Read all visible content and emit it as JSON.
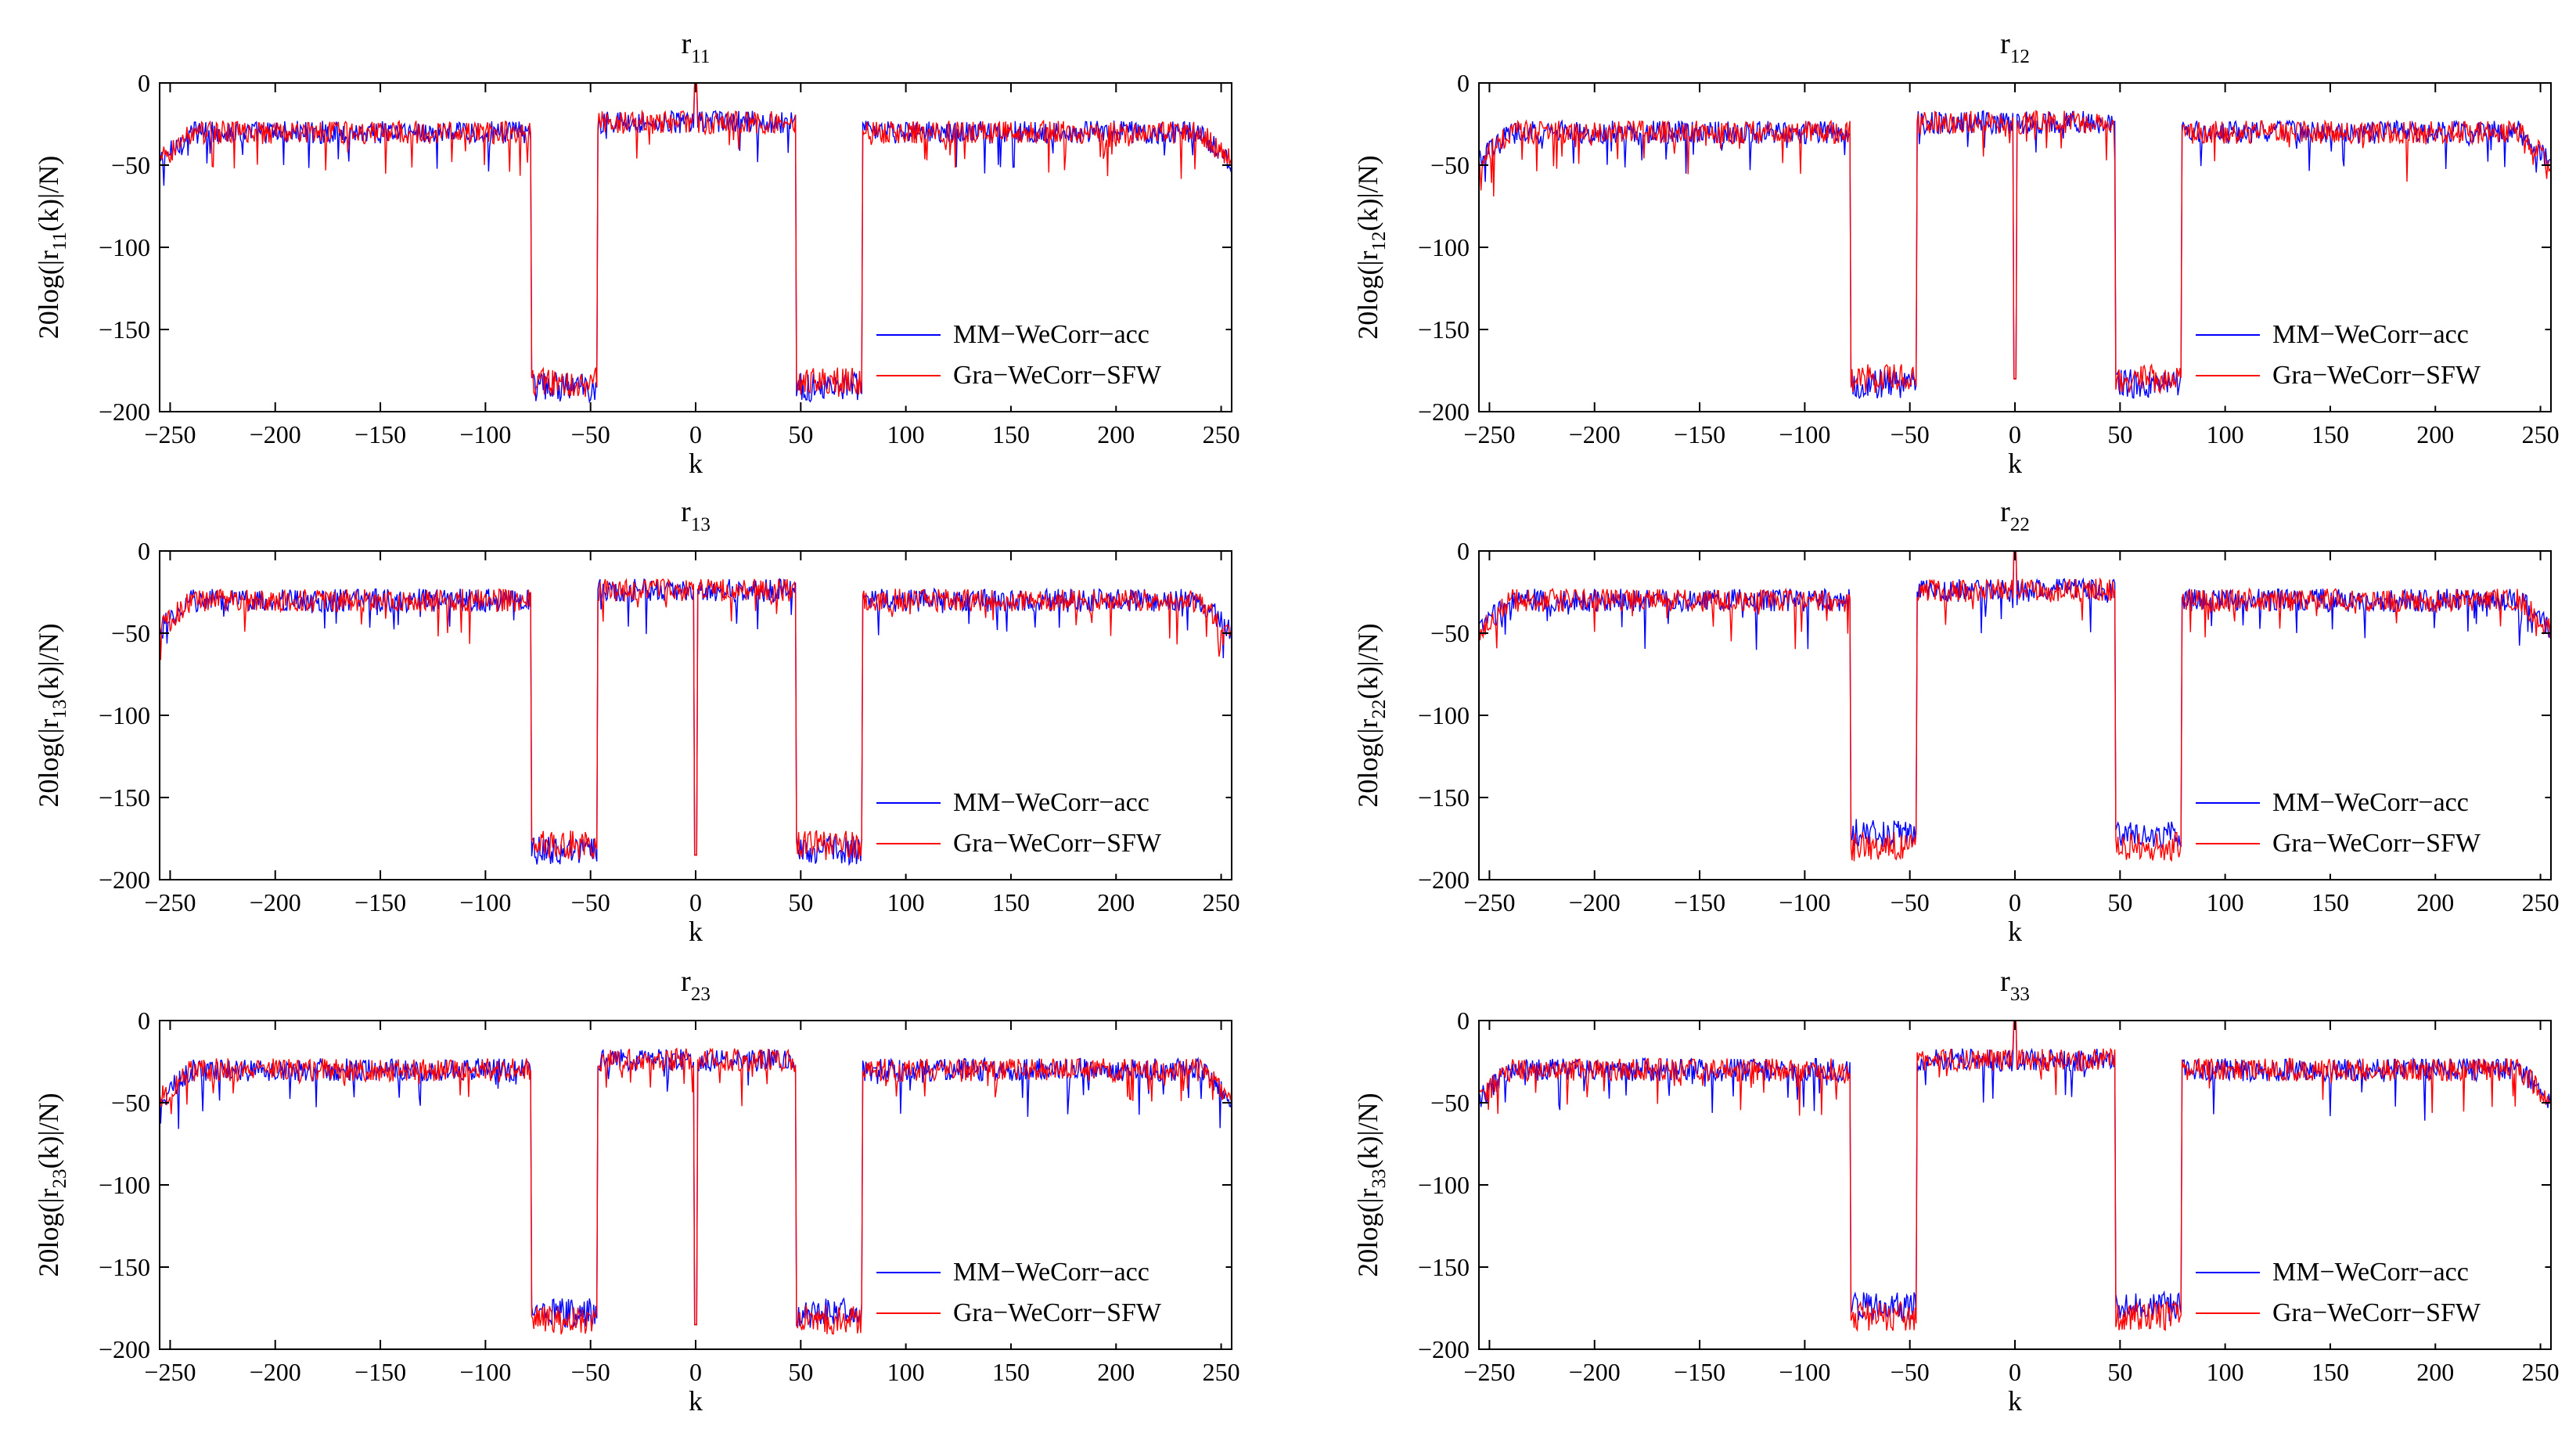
{
  "figure_type": "grid of correlation plots",
  "colors": {
    "mm": "#0000ff",
    "gra": "#ff0000",
    "axis": "#000000",
    "background": "#ffffff"
  },
  "legend": {
    "placement": "bottom-right",
    "entries": [
      "MM−WeCorr−acc",
      "Gra−WeCorr−SFW"
    ]
  },
  "chart_data": [
    {
      "type": "line",
      "title": {
        "base": "r",
        "sub": "11"
      },
      "xlabel": "k",
      "ylabel": {
        "pre": "20log(|r",
        "sub": "11",
        "post": "(k)|/N)"
      },
      "xlim": [
        -255,
        255
      ],
      "ylim": [
        -200,
        0
      ],
      "xticks": [
        -250,
        -200,
        -150,
        -100,
        -50,
        0,
        50,
        100,
        150,
        200,
        250
      ],
      "xtick_labels": [
        "−250",
        "−200",
        "−150",
        "−100",
        "−50",
        "0",
        "50",
        "100",
        "150",
        "200",
        "250"
      ],
      "yticks": [
        0,
        -50,
        -100,
        -150,
        -200
      ],
      "ytick_labels": [
        "0",
        "−50",
        "−100",
        "−150",
        "−200"
      ],
      "stopbands": [
        [
          -78,
          -47
        ],
        [
          48,
          79
        ]
      ],
      "series": [
        {
          "name": "MM−WeCorr−acc",
          "color": "#0000ff",
          "passband_level": -30,
          "stopband_level": -185,
          "center_spike": 0
        },
        {
          "name": "Gra−WeCorr−SFW",
          "color": "#ff0000",
          "passband_level": -30,
          "stopband_level": -182,
          "center_spike": 0
        }
      ]
    },
    {
      "type": "line",
      "title": {
        "base": "r",
        "sub": "12"
      },
      "xlabel": "k",
      "ylabel": {
        "pre": "20log(|r",
        "sub": "12",
        "post": "(k)|/N)"
      },
      "xlim": [
        -255,
        255
      ],
      "ylim": [
        -200,
        0
      ],
      "xticks": [
        -250,
        -200,
        -150,
        -100,
        -50,
        0,
        50,
        100,
        150,
        200,
        250
      ],
      "xtick_labels": [
        "−250",
        "−200",
        "−150",
        "−100",
        "−50",
        "0",
        "50",
        "100",
        "150",
        "200",
        "250"
      ],
      "yticks": [
        0,
        -50,
        -100,
        -150,
        -200
      ],
      "ytick_labels": [
        "0",
        "−50",
        "−100",
        "−150",
        "−200"
      ],
      "stopbands": [
        [
          -78,
          -47
        ],
        [
          48,
          79
        ]
      ],
      "series": [
        {
          "name": "MM−WeCorr−acc",
          "color": "#0000ff",
          "passband_level": -30,
          "stopband_level": -183,
          "center_spike": -180
        },
        {
          "name": "Gra−WeCorr−SFW",
          "color": "#ff0000",
          "passband_level": -30,
          "stopband_level": -180,
          "center_spike": -180
        }
      ]
    },
    {
      "type": "line",
      "title": {
        "base": "r",
        "sub": "13"
      },
      "xlabel": "k",
      "ylabel": {
        "pre": "20log(|r",
        "sub": "13",
        "post": "(k)|/N)"
      },
      "xlim": [
        -255,
        255
      ],
      "ylim": [
        -200,
        0
      ],
      "xticks": [
        -250,
        -200,
        -150,
        -100,
        -50,
        0,
        50,
        100,
        150,
        200,
        250
      ],
      "xtick_labels": [
        "−250",
        "−200",
        "−150",
        "−100",
        "−50",
        "0",
        "50",
        "100",
        "150",
        "200",
        "250"
      ],
      "yticks": [
        0,
        -50,
        -100,
        -150,
        -200
      ],
      "ytick_labels": [
        "0",
        "−50",
        "−100",
        "−150",
        "−200"
      ],
      "stopbands": [
        [
          -78,
          -47
        ],
        [
          48,
          79
        ]
      ],
      "series": [
        {
          "name": "MM−WeCorr−acc",
          "color": "#0000ff",
          "passband_level": -30,
          "stopband_level": -182,
          "center_spike": -185
        },
        {
          "name": "Gra−WeCorr−SFW",
          "color": "#ff0000",
          "passband_level": -30,
          "stopband_level": -179,
          "center_spike": -185
        }
      ]
    },
    {
      "type": "line",
      "title": {
        "base": "r",
        "sub": "22"
      },
      "xlabel": "k",
      "ylabel": {
        "pre": "20log(|r",
        "sub": "22",
        "post": "(k)|/N)"
      },
      "xlim": [
        -255,
        255
      ],
      "ylim": [
        -200,
        0
      ],
      "xticks": [
        -250,
        -200,
        -150,
        -100,
        -50,
        0,
        50,
        100,
        150,
        200,
        250
      ],
      "xtick_labels": [
        "−250",
        "−200",
        "−150",
        "−100",
        "−50",
        "0",
        "50",
        "100",
        "150",
        "200",
        "250"
      ],
      "yticks": [
        0,
        -50,
        -100,
        -150,
        -200
      ],
      "ytick_labels": [
        "0",
        "−50",
        "−100",
        "−150",
        "−200"
      ],
      "stopbands": [
        [
          -78,
          -47
        ],
        [
          48,
          79
        ]
      ],
      "series": [
        {
          "name": "MM−WeCorr−acc",
          "color": "#0000ff",
          "passband_level": -30,
          "stopband_level": -172,
          "center_spike": 0
        },
        {
          "name": "Gra−WeCorr−SFW",
          "color": "#ff0000",
          "passband_level": -30,
          "stopband_level": -180,
          "center_spike": 0
        }
      ]
    },
    {
      "type": "line",
      "title": {
        "base": "r",
        "sub": "23"
      },
      "xlabel": "k",
      "ylabel": {
        "pre": "20log(|r",
        "sub": "23",
        "post": "(k)|/N)"
      },
      "xlim": [
        -255,
        255
      ],
      "ylim": [
        -200,
        0
      ],
      "xticks": [
        -250,
        -200,
        -150,
        -100,
        -50,
        0,
        50,
        100,
        150,
        200,
        250
      ],
      "xtick_labels": [
        "−250",
        "−200",
        "−150",
        "−100",
        "−50",
        "0",
        "50",
        "100",
        "150",
        "200",
        "250"
      ],
      "yticks": [
        0,
        -50,
        -100,
        -150,
        -200
      ],
      "ytick_labels": [
        "0",
        "−50",
        "−100",
        "−150",
        "−200"
      ],
      "stopbands": [
        [
          -78,
          -47
        ],
        [
          48,
          79
        ]
      ],
      "series": [
        {
          "name": "MM−WeCorr−acc",
          "color": "#0000ff",
          "passband_level": -30,
          "stopband_level": -178,
          "center_spike": -185
        },
        {
          "name": "Gra−WeCorr−SFW",
          "color": "#ff0000",
          "passband_level": -30,
          "stopband_level": -182,
          "center_spike": -185
        }
      ]
    },
    {
      "type": "line",
      "title": {
        "base": "r",
        "sub": "33"
      },
      "xlabel": "k",
      "ylabel": {
        "pre": "20log(|r",
        "sub": "33",
        "post": "(k)|/N)"
      },
      "xlim": [
        -255,
        255
      ],
      "ylim": [
        -200,
        0
      ],
      "xticks": [
        -250,
        -200,
        -150,
        -100,
        -50,
        0,
        50,
        100,
        150,
        200,
        250
      ],
      "xtick_labels": [
        "−250",
        "−200",
        "−150",
        "−100",
        "−50",
        "0",
        "50",
        "100",
        "150",
        "200",
        "250"
      ],
      "yticks": [
        0,
        -50,
        -100,
        -150,
        -200
      ],
      "ytick_labels": [
        "0",
        "−50",
        "−100",
        "−150",
        "−200"
      ],
      "stopbands": [
        [
          -78,
          -47
        ],
        [
          48,
          79
        ]
      ],
      "series": [
        {
          "name": "MM−WeCorr−acc",
          "color": "#0000ff",
          "passband_level": -30,
          "stopband_level": -174,
          "center_spike": 0
        },
        {
          "name": "Gra−WeCorr−SFW",
          "color": "#ff0000",
          "passband_level": -30,
          "stopband_level": -180,
          "center_spike": 0
        }
      ]
    }
  ]
}
